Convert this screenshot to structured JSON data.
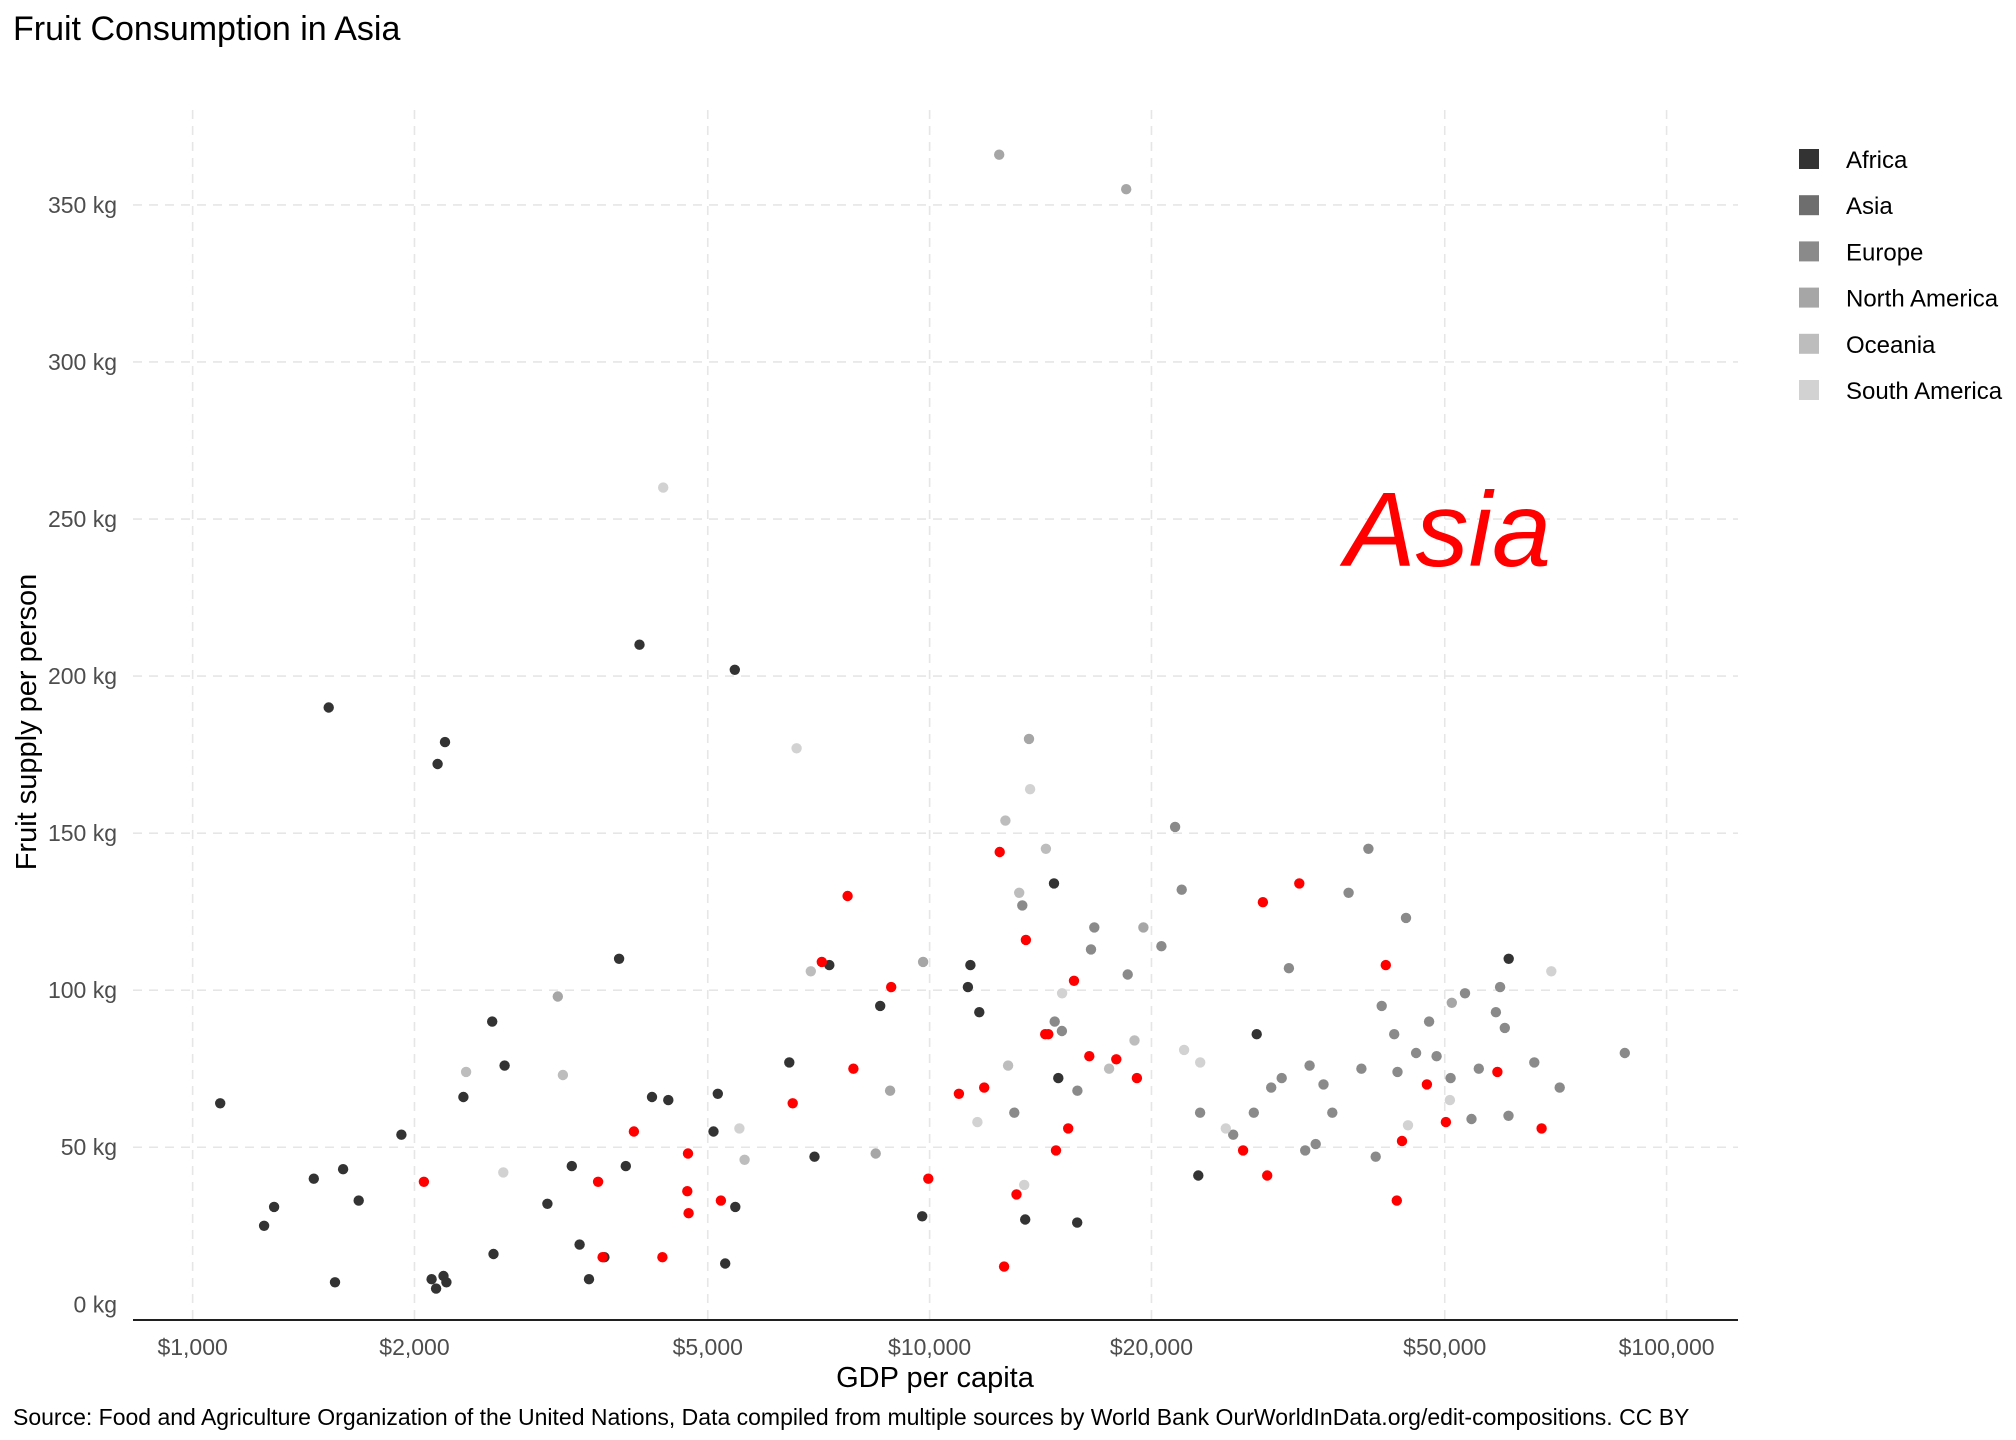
{
  "chart_data": {
    "type": "scatter",
    "title": "Fruit Consumption in Asia",
    "source": "Source: Food and Agriculture Organization of the United Nations, Data compiled from multiple sources by World Bank OurWorldInData.org/edit-compositions. CC BY",
    "xlabel": "GDP per capita",
    "ylabel": "Fruit supply per person",
    "annotation": "Asia",
    "annotation_color": "#ff0000",
    "highlight_color": "#ff0000",
    "x_scale": "log10",
    "xlim": [
      830,
      125000
    ],
    "ylim": [
      -5,
      385
    ],
    "x_ticks": [
      1000,
      2000,
      5000,
      10000,
      20000,
      50000,
      100000
    ],
    "x_tick_labels": [
      "$1,000",
      "$2,000",
      "$5,000",
      "$10,000",
      "$20,000",
      "$50,000",
      "$100,000"
    ],
    "y_ticks": [
      0,
      50,
      100,
      150,
      200,
      250,
      300,
      350
    ],
    "y_tick_labels": [
      "0 kg",
      "50 kg",
      "100 kg",
      "150 kg",
      "200 kg",
      "250 kg",
      "300 kg",
      "350 kg"
    ],
    "grid": true,
    "legend_position": "right",
    "legend": [
      {
        "name": "Africa",
        "color": "#333333"
      },
      {
        "name": "Asia",
        "color": "#6e6e6e"
      },
      {
        "name": "Europe",
        "color": "#8a8a8a"
      },
      {
        "name": "North America",
        "color": "#a6a6a6"
      },
      {
        "name": "Oceania",
        "color": "#bdbdbd"
      },
      {
        "name": "South America",
        "color": "#d2d2d2"
      }
    ],
    "series": [
      {
        "name": "Africa",
        "color": "#333333",
        "points": [
          [
            1090,
            64
          ],
          [
            1250,
            25
          ],
          [
            1290,
            31
          ],
          [
            1460,
            40
          ],
          [
            1530,
            190
          ],
          [
            1560,
            7
          ],
          [
            1600,
            43
          ],
          [
            1680,
            33
          ],
          [
            1920,
            54
          ],
          [
            2110,
            8
          ],
          [
            2140,
            5
          ],
          [
            2150,
            172
          ],
          [
            2190,
            9
          ],
          [
            2200,
            179
          ],
          [
            2210,
            7
          ],
          [
            2330,
            66
          ],
          [
            2550,
            90
          ],
          [
            2560,
            16
          ],
          [
            2650,
            76
          ],
          [
            3030,
            32
          ],
          [
            3270,
            44
          ],
          [
            3350,
            19
          ],
          [
            3450,
            8
          ],
          [
            3620,
            15
          ],
          [
            3790,
            110
          ],
          [
            3870,
            44
          ],
          [
            4040,
            210
          ],
          [
            4200,
            66
          ],
          [
            4420,
            65
          ],
          [
            5090,
            55
          ],
          [
            5160,
            67
          ],
          [
            5280,
            13
          ],
          [
            5440,
            202
          ],
          [
            5450,
            31
          ],
          [
            6450,
            77
          ],
          [
            6980,
            47
          ],
          [
            7310,
            108
          ],
          [
            8570,
            95
          ],
          [
            9770,
            28
          ],
          [
            11360,
            108
          ],
          [
            11680,
            93
          ],
          [
            11270,
            101
          ],
          [
            13480,
            27
          ],
          [
            14750,
            134
          ],
          [
            14950,
            72
          ],
          [
            15860,
            26
          ],
          [
            23150,
            41
          ],
          [
            27790,
            86
          ],
          [
            61060,
            110
          ]
        ]
      },
      {
        "name": "Asia",
        "color": "#ff0000",
        "points": [
          [
            2060,
            39
          ],
          [
            3550,
            39
          ],
          [
            3600,
            15
          ],
          [
            3970,
            55
          ],
          [
            4340,
            15
          ],
          [
            4690,
            36
          ],
          [
            4700,
            48
          ],
          [
            4710,
            29
          ],
          [
            5210,
            33
          ],
          [
            6520,
            64
          ],
          [
            7140,
            109
          ],
          [
            7740,
            130
          ],
          [
            7880,
            75
          ],
          [
            8870,
            101
          ],
          [
            9960,
            40
          ],
          [
            10960,
            67
          ],
          [
            11860,
            69
          ],
          [
            12450,
            144
          ],
          [
            12620,
            12
          ],
          [
            13120,
            35
          ],
          [
            13510,
            116
          ],
          [
            14350,
            86
          ],
          [
            14490,
            86
          ],
          [
            14840,
            49
          ],
          [
            15420,
            56
          ],
          [
            15700,
            103
          ],
          [
            16470,
            79
          ],
          [
            17920,
            78
          ],
          [
            19110,
            72
          ],
          [
            26630,
            49
          ],
          [
            28330,
            128
          ],
          [
            28710,
            41
          ],
          [
            31740,
            134
          ],
          [
            41590,
            108
          ],
          [
            43050,
            33
          ],
          [
            43750,
            52
          ],
          [
            47290,
            70
          ],
          [
            50180,
            58
          ],
          [
            58940,
            74
          ],
          [
            67680,
            56
          ]
        ]
      },
      {
        "name": "Europe",
        "color": "#8a8a8a",
        "points": [
          [
            13030,
            61
          ],
          [
            13360,
            127
          ],
          [
            14780,
            90
          ],
          [
            15120,
            87
          ],
          [
            15870,
            68
          ],
          [
            16560,
            113
          ],
          [
            16730,
            120
          ],
          [
            18570,
            105
          ],
          [
            20630,
            114
          ],
          [
            21530,
            152
          ],
          [
            21980,
            132
          ],
          [
            23280,
            61
          ],
          [
            25820,
            54
          ],
          [
            27540,
            61
          ],
          [
            29070,
            69
          ],
          [
            30040,
            72
          ],
          [
            30730,
            107
          ],
          [
            32330,
            49
          ],
          [
            32780,
            76
          ],
          [
            33410,
            51
          ],
          [
            34240,
            70
          ],
          [
            35190,
            61
          ],
          [
            37030,
            131
          ],
          [
            38540,
            75
          ],
          [
            39390,
            145
          ],
          [
            40300,
            47
          ],
          [
            41060,
            95
          ],
          [
            42700,
            86
          ],
          [
            43140,
            74
          ],
          [
            44300,
            123
          ],
          [
            45720,
            80
          ],
          [
            47610,
            90
          ],
          [
            48750,
            79
          ],
          [
            50920,
            72
          ],
          [
            53270,
            99
          ],
          [
            54370,
            59
          ],
          [
            55620,
            75
          ],
          [
            58660,
            93
          ],
          [
            59440,
            101
          ],
          [
            60320,
            88
          ],
          [
            61030,
            60
          ],
          [
            66150,
            77
          ],
          [
            71610,
            69
          ],
          [
            87760,
            80
          ]
        ]
      },
      {
        "name": "North America",
        "color": "#a6a6a6",
        "points": [
          [
            3130,
            98
          ],
          [
            8450,
            48
          ],
          [
            8840,
            68
          ],
          [
            9800,
            109
          ],
          [
            12430,
            366
          ],
          [
            13640,
            180
          ],
          [
            18480,
            355
          ],
          [
            19500,
            120
          ],
          [
            51120,
            96
          ]
        ]
      },
      {
        "name": "Oceania",
        "color": "#bdbdbd",
        "points": [
          [
            2350,
            74
          ],
          [
            3180,
            73
          ],
          [
            5610,
            46
          ],
          [
            6900,
            106
          ],
          [
            12780,
            76
          ],
          [
            12670,
            154
          ],
          [
            13230,
            131
          ],
          [
            14380,
            145
          ],
          [
            17520,
            75
          ],
          [
            18970,
            84
          ]
        ]
      },
      {
        "name": "South America",
        "color": "#d2d2d2",
        "points": [
          [
            2640,
            42
          ],
          [
            4350,
            260
          ],
          [
            5520,
            56
          ],
          [
            6600,
            177
          ],
          [
            11610,
            58
          ],
          [
            13440,
            38
          ],
          [
            13690,
            164
          ],
          [
            15130,
            99
          ],
          [
            22150,
            81
          ],
          [
            23290,
            77
          ],
          [
            25230,
            56
          ],
          [
            44580,
            57
          ],
          [
            50820,
            65
          ],
          [
            69760,
            106
          ]
        ]
      }
    ]
  }
}
